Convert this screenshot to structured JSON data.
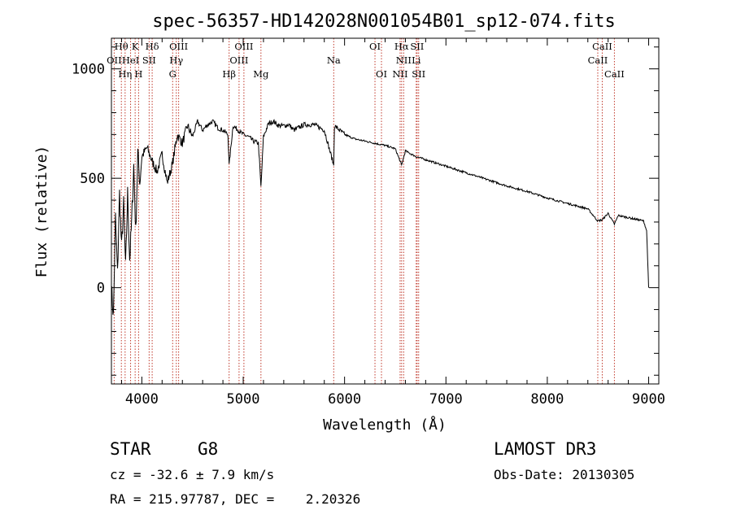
{
  "chart_data": {
    "type": "line",
    "title": "spec-56357-HD142028N001054B01_sp12-074.fits",
    "xlabel": "Wavelength (Å)",
    "ylabel": "Flux (relative)",
    "xlim": [
      3700,
      9100
    ],
    "ylim": [
      -440,
      1140
    ],
    "x_ticks": [
      4000,
      5000,
      6000,
      7000,
      8000,
      9000
    ],
    "y_ticks": [
      0,
      500,
      1000
    ],
    "series": [
      {
        "name": "spectrum",
        "x": [
          3700,
          3720,
          3740,
          3760,
          3780,
          3800,
          3820,
          3840,
          3860,
          3880,
          3900,
          3920,
          3940,
          3960,
          3980,
          4000,
          4050,
          4100,
          4150,
          4200,
          4250,
          4300,
          4350,
          4400,
          4450,
          4500,
          4550,
          4600,
          4650,
          4700,
          4750,
          4800,
          4850,
          4861,
          4900,
          4950,
          5000,
          5050,
          5100,
          5150,
          5175,
          5200,
          5250,
          5300,
          5350,
          5400,
          5450,
          5500,
          5600,
          5700,
          5800,
          5893,
          5900,
          6000,
          6100,
          6200,
          6300,
          6400,
          6500,
          6563,
          6600,
          6700,
          6800,
          6900,
          7000,
          7200,
          7400,
          7600,
          7800,
          8000,
          8200,
          8400,
          8498,
          8542,
          8600,
          8662,
          8700,
          8800,
          8900,
          8950,
          8980,
          9000
        ],
        "values": [
          0,
          -130,
          320,
          60,
          430,
          180,
          380,
          90,
          430,
          130,
          300,
          560,
          250,
          620,
          480,
          600,
          640,
          580,
          530,
          610,
          480,
          560,
          700,
          660,
          740,
          690,
          760,
          720,
          745,
          760,
          730,
          720,
          700,
          560,
          740,
          720,
          700,
          690,
          670,
          660,
          460,
          690,
          750,
          760,
          740,
          740,
          745,
          720,
          745,
          745,
          720,
          560,
          740,
          700,
          680,
          670,
          660,
          650,
          635,
          560,
          625,
          600,
          585,
          570,
          555,
          525,
          495,
          465,
          440,
          410,
          385,
          360,
          305,
          310,
          340,
          290,
          330,
          320,
          310,
          305,
          260,
          0
        ]
      }
    ],
    "line_labels": [
      {
        "name": "OII",
        "wave": 3727,
        "row": 1
      },
      {
        "name": "Hθ",
        "wave": 3798,
        "row": 0
      },
      {
        "name": "Hη",
        "wave": 3835,
        "row": 2
      },
      {
        "name": "HeI",
        "wave": 3889,
        "row": 1
      },
      {
        "name": "K",
        "wave": 3934,
        "row": 0
      },
      {
        "name": "H",
        "wave": 3968,
        "row": 2
      },
      {
        "name": "SII",
        "wave": 4072,
        "row": 1
      },
      {
        "name": "Hδ",
        "wave": 4102,
        "row": 0
      },
      {
        "name": "G",
        "wave": 4304,
        "row": 2
      },
      {
        "name": "Hγ",
        "wave": 4340,
        "row": 1
      },
      {
        "name": "OIII",
        "wave": 4363,
        "row": 0
      },
      {
        "name": "Hβ",
        "wave": 4861,
        "row": 2
      },
      {
        "name": "OIII",
        "wave": 4959,
        "row": 1
      },
      {
        "name": "OIII",
        "wave": 5007,
        "row": 0
      },
      {
        "name": "Mg",
        "wave": 5175,
        "row": 2
      },
      {
        "name": "Na",
        "wave": 5893,
        "row": 1
      },
      {
        "name": "OI",
        "wave": 6300,
        "row": 0
      },
      {
        "name": "OI",
        "wave": 6364,
        "row": 2
      },
      {
        "name": "NII",
        "wave": 6548,
        "row": 2
      },
      {
        "name": "Hα",
        "wave": 6563,
        "row": 0
      },
      {
        "name": "NII",
        "wave": 6583,
        "row": 1
      },
      {
        "name": "Li",
        "wave": 6707,
        "row": 1
      },
      {
        "name": "SII",
        "wave": 6716,
        "row": 0
      },
      {
        "name": "SII",
        "wave": 6731,
        "row": 2
      },
      {
        "name": "CaII",
        "wave": 8498,
        "row": 1
      },
      {
        "name": "CaII",
        "wave": 8542,
        "row": 0
      },
      {
        "name": "CaII",
        "wave": 8662,
        "row": 2
      }
    ]
  },
  "footer": {
    "object_type": "STAR",
    "subclass": "G8",
    "survey": "LAMOST DR3",
    "redshift": "cz = -32.6 ± 7.9 km/s",
    "obs_date": "Obs-Date: 20130305",
    "coords": "RA = 215.97787, DEC =    2.20326"
  },
  "colors": {
    "line_marker": "#c0392b",
    "spectrum": "#000000"
  }
}
